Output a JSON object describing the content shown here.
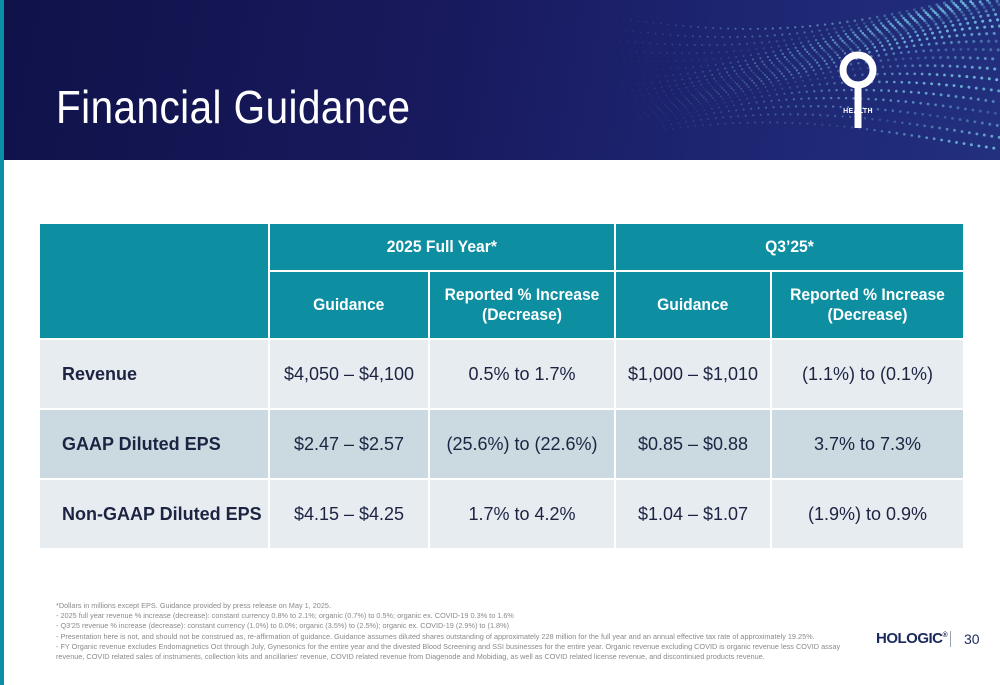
{
  "header": {
    "title": "Financial Guidance",
    "logo_text": "HEALTH"
  },
  "table": {
    "groups": [
      "2025 Full Year*",
      "Q3’25*"
    ],
    "subheaders": [
      "Guidance",
      "Reported % Increase (Decrease)",
      "Guidance",
      "Reported % Increase (Decrease)"
    ],
    "rows": [
      {
        "label": "Revenue",
        "cells": [
          "$4,050 – $4,100",
          "0.5% to 1.7%",
          "$1,000 – $1,010",
          "(1.1%) to (0.1%)"
        ]
      },
      {
        "label": "GAAP Diluted EPS",
        "cells": [
          "$2.47 – $2.57",
          "(25.6%) to (22.6%)",
          "$0.85 – $0.88",
          "3.7% to 7.3%"
        ]
      },
      {
        "label": "Non-GAAP Diluted EPS",
        "cells": [
          "$4.15 – $4.25",
          "1.7% to 4.2%",
          "$1.04 – $1.07",
          "(1.9%) to 0.9%"
        ]
      }
    ]
  },
  "footnotes": [
    "*Dollars in millions except EPS.  Guidance provided by press release on May 1, 2025.",
    "- 2025 full year revenue % increase (decrease): constant currency 0.8% to 2.1%; organic (0.7%) to 0.5%; organic ex. COVID-19 0.3% to 1.6%",
    "- Q3’25 revenue % increase (decrease): constant currency (1.0%) to 0.0%; organic (3.5%) to (2.5%); organic ex. COVID-19 (2.9%) to (1.8%)",
    "- Presentation here is not, and should not be construed as, re-affirmation of guidance. Guidance assumes diluted shares outstanding of approximately 228 million for the full year and an annual effective tax rate of approximately 19.25%.",
    "- FY Organic revenue excludes Endomagnetics Oct through July, Gynesonics for the entire year and the divested Blood Screening and SSI businesses for the entire year. Organic revenue excluding COVID is organic revenue less COVID assay",
    "revenue, COVID related sales of instruments, collection kits and ancillaries’ revenue, COVID related revenue from Diagenode and Mobidiag, as well as COVID related license revenue, and discontinued products revenue."
  ],
  "footer": {
    "brand": "HOLOGIC",
    "brand_mark": "®",
    "page_number": "30"
  },
  "colors": {
    "header_bg": "#181a5e",
    "table_header": "#0e8ea1",
    "row_light": "#e7ecf1",
    "row_dark": "#cbd9e1",
    "accent": "#0a8fa6"
  }
}
